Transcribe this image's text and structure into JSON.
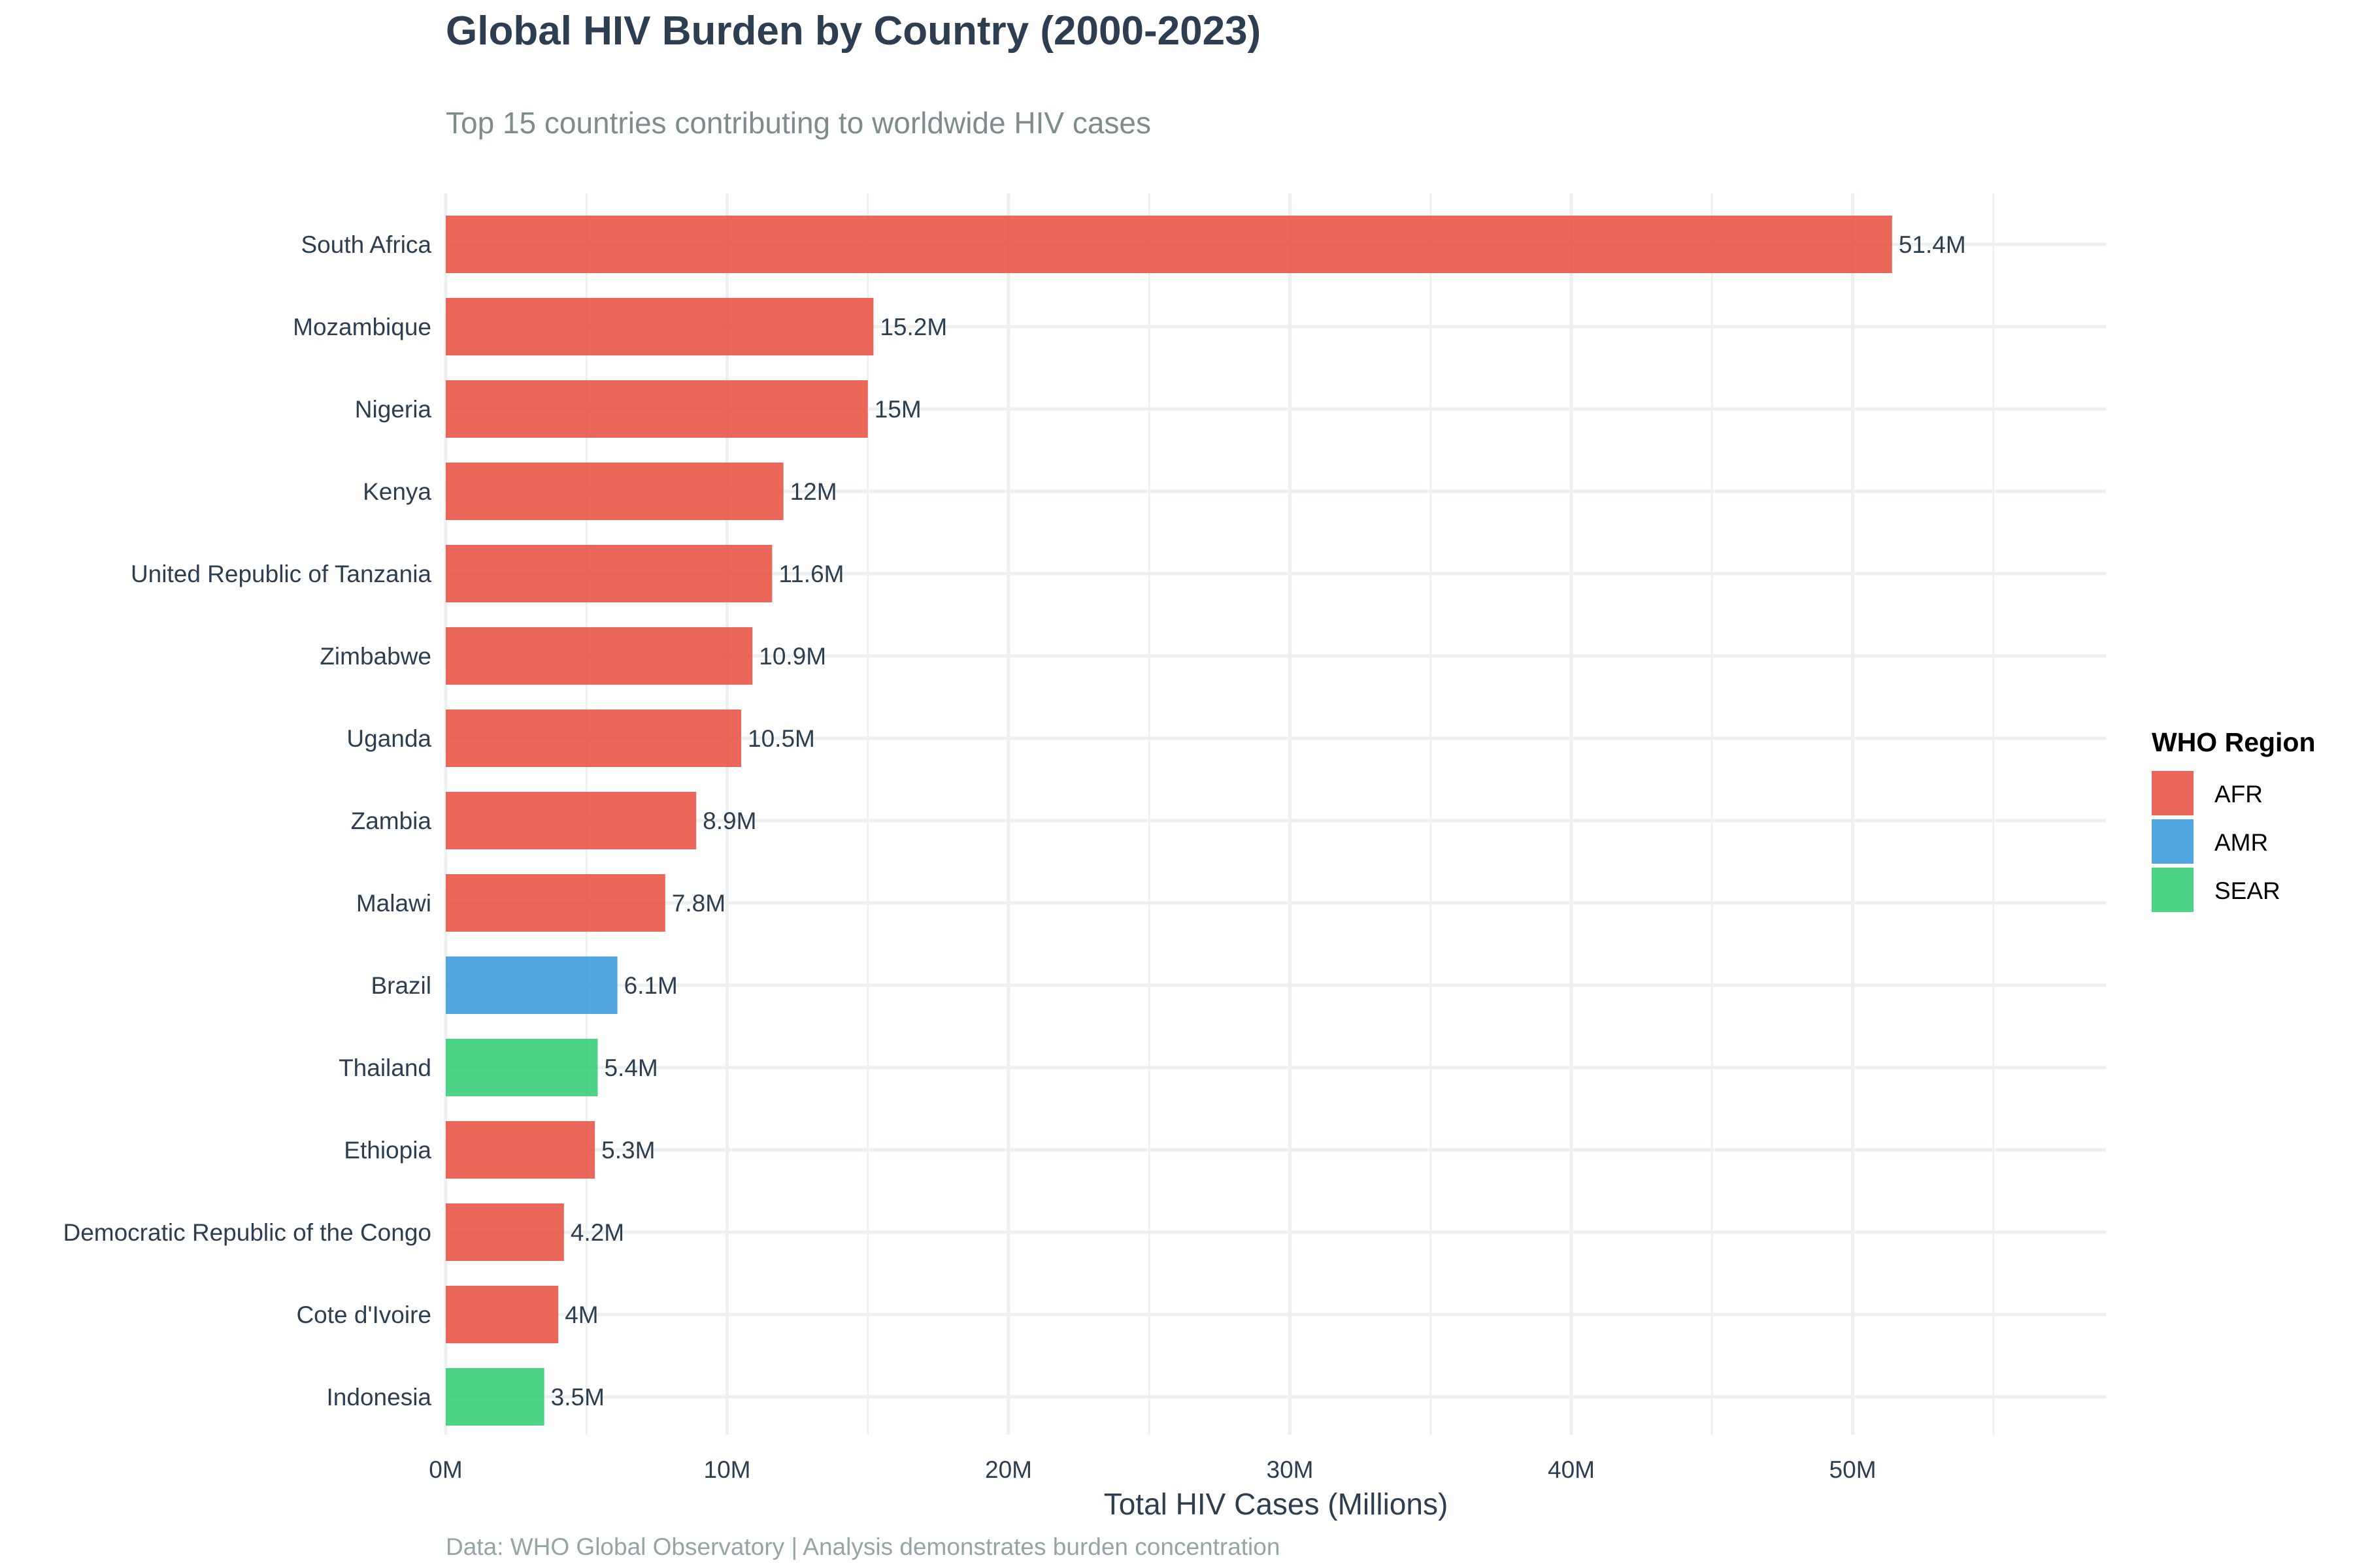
{
  "chart_data": {
    "type": "bar",
    "orientation": "horizontal",
    "title": "Global HIV Burden by Country (2000-2023)",
    "subtitle": "Top 15 countries contributing to worldwide HIV cases",
    "xlabel": "Total HIV Cases (Millions)",
    "ylabel": "",
    "caption": "Data: WHO Global Observatory | Analysis demonstrates burden concentration",
    "xlim": [
      0,
      59
    ],
    "x_ticks": [
      0,
      10,
      20,
      30,
      40,
      50
    ],
    "x_tick_labels": [
      "0M",
      "10M",
      "20M",
      "30M",
      "40M",
      "50M"
    ],
    "grid": true,
    "legend": {
      "title": "WHO Region",
      "placement": "right",
      "items": [
        {
          "label": "AFR",
          "color": "#e74c3c"
        },
        {
          "label": "AMR",
          "color": "#3498db"
        },
        {
          "label": "SEAR",
          "color": "#2ecc71"
        }
      ]
    },
    "categories": [
      "South Africa",
      "Mozambique",
      "Nigeria",
      "Kenya",
      "United Republic of Tanzania",
      "Zimbabwe",
      "Uganda",
      "Zambia",
      "Malawi",
      "Brazil",
      "Thailand",
      "Ethiopia",
      "Democratic Republic of the Congo",
      "Cote d'Ivoire",
      "Indonesia"
    ],
    "values": [
      51.4,
      15.2,
      15.0,
      12.0,
      11.6,
      10.9,
      10.5,
      8.9,
      7.8,
      6.1,
      5.4,
      5.3,
      4.2,
      4.0,
      3.5
    ],
    "value_labels": [
      "51.4M",
      "15.2M",
      "15M",
      "12M",
      "11.6M",
      "10.9M",
      "10.5M",
      "8.9M",
      "7.8M",
      "6.1M",
      "5.4M",
      "5.3M",
      "4.2M",
      "4M",
      "3.5M"
    ],
    "regions": [
      "AFR",
      "AFR",
      "AFR",
      "AFR",
      "AFR",
      "AFR",
      "AFR",
      "AFR",
      "AFR",
      "AMR",
      "SEAR",
      "AFR",
      "AFR",
      "AFR",
      "SEAR"
    ],
    "colors": {
      "gridline": "#ecf0f1",
      "text": "#2c3e50"
    }
  }
}
